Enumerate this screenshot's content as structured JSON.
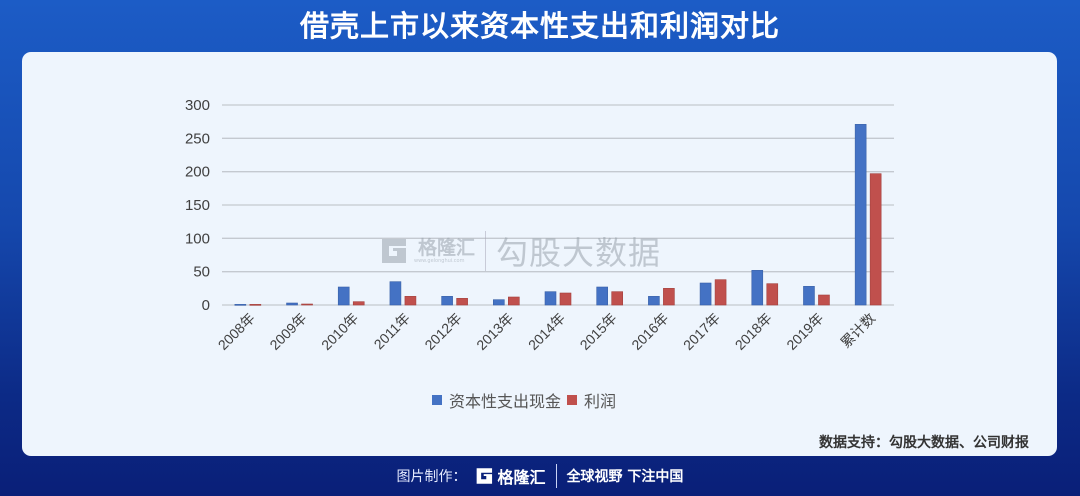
{
  "header": {
    "title": "借壳上市以来资本性支出和利润对比"
  },
  "watermark": {
    "brand": "格隆汇",
    "url": "www.gelonghui.com",
    "text": "勾股大数据"
  },
  "source": {
    "text": "数据支持：勾股大数据、公司财报"
  },
  "footer": {
    "label": "图片制作：",
    "brand": "格隆汇",
    "slogan": "全球视野 下注中国"
  },
  "colors": {
    "series_blue": "#4472c4",
    "series_red": "#c0504d",
    "background_top": "#1c5cc6",
    "background_bottom": "#0a1f78",
    "card": "#eef5fd"
  },
  "legend": [
    {
      "label": "资本性支出现金",
      "color": "#4472c4"
    },
    {
      "label": "利润",
      "color": "#c0504d"
    }
  ],
  "chart_data": {
    "type": "bar",
    "title": "借壳上市以来资本性支出和利润对比",
    "xlabel": "",
    "ylabel": "",
    "ylim": [
      0,
      300
    ],
    "yticks": [
      0,
      50,
      100,
      150,
      200,
      250,
      300
    ],
    "grid": true,
    "legend_position": "bottom",
    "categories": [
      "2008年",
      "2009年",
      "2010年",
      "2011年",
      "2012年",
      "2013年",
      "2014年",
      "2015年",
      "2016年",
      "2017年",
      "2018年",
      "2019年",
      "累计数"
    ],
    "series": [
      {
        "name": "资本性支出现金",
        "color": "#4472c4",
        "values": [
          1,
          3,
          27,
          35,
          13,
          8,
          20,
          27,
          13,
          33,
          52,
          28,
          271
        ]
      },
      {
        "name": "利润",
        "color": "#c0504d",
        "values": [
          1,
          1.5,
          5,
          13,
          10,
          12,
          18,
          20,
          25,
          38,
          32,
          15,
          197
        ]
      }
    ],
    "annotations": [
      "数据支持：勾股大数据、公司财报"
    ]
  }
}
